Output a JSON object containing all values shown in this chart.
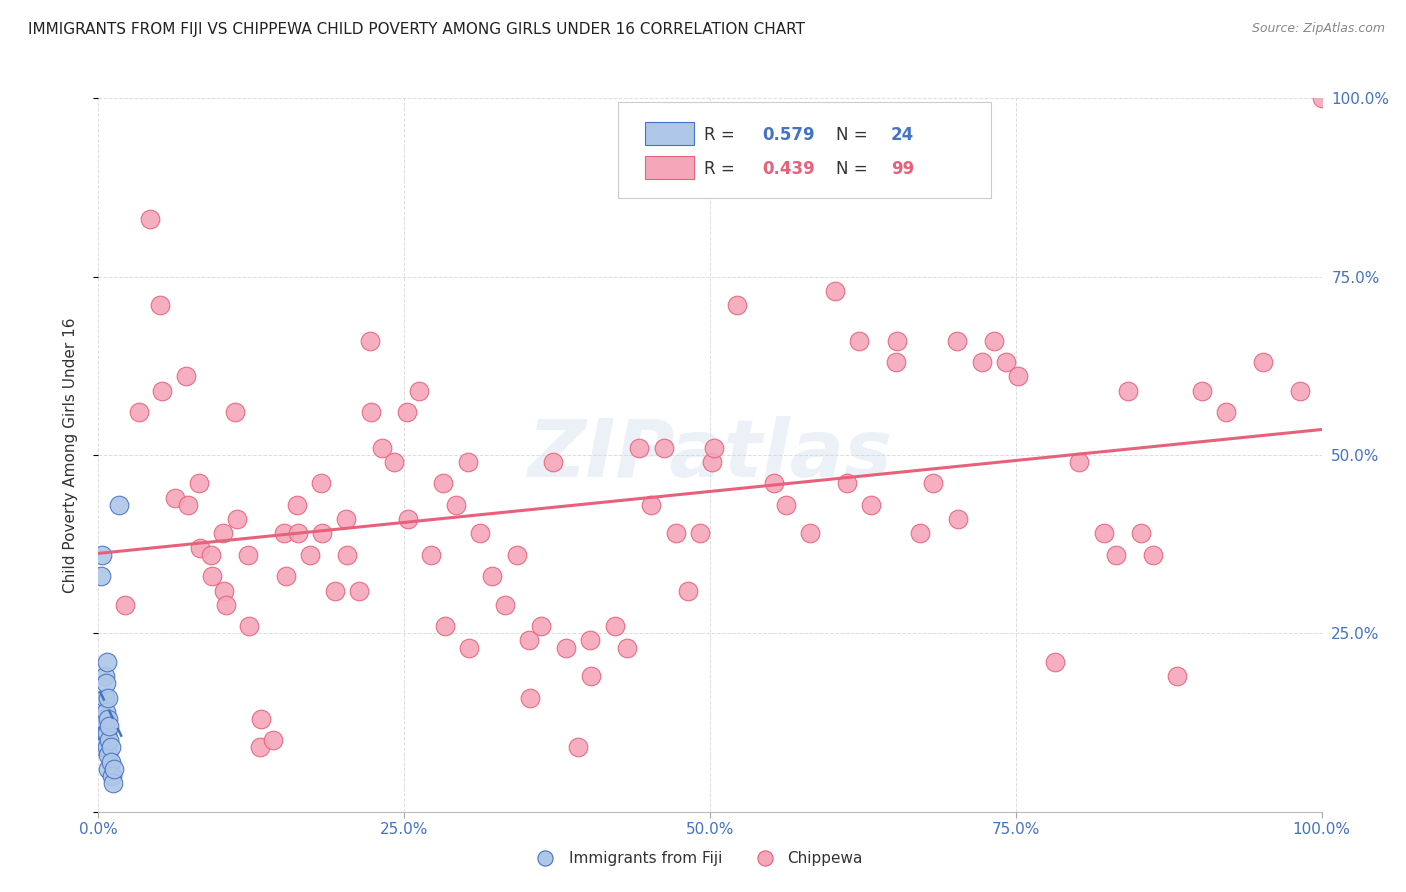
{
  "title": "IMMIGRANTS FROM FIJI VS CHIPPEWA CHILD POVERTY AMONG GIRLS UNDER 16 CORRELATION CHART",
  "source": "Source: ZipAtlas.com",
  "ylabel": "Child Poverty Among Girls Under 16",
  "watermark": "ZIPatlas",
  "fiji_R": 0.579,
  "fiji_N": 24,
  "chippewa_R": 0.439,
  "chippewa_N": 99,
  "fiji_color": "#aec6e8",
  "fiji_line_color": "#4472c4",
  "chippewa_color": "#f4a7b9",
  "chippewa_line_color": "#e8617a",
  "fiji_scatter": [
    [
      0.002,
      0.33
    ],
    [
      0.003,
      0.36
    ],
    [
      0.004,
      0.09
    ],
    [
      0.004,
      0.13
    ],
    [
      0.005,
      0.16
    ],
    [
      0.005,
      0.19
    ],
    [
      0.006,
      0.11
    ],
    [
      0.006,
      0.14
    ],
    [
      0.006,
      0.18
    ],
    [
      0.007,
      0.21
    ],
    [
      0.007,
      0.09
    ],
    [
      0.007,
      0.11
    ],
    [
      0.008,
      0.13
    ],
    [
      0.008,
      0.16
    ],
    [
      0.008,
      0.06
    ],
    [
      0.008,
      0.08
    ],
    [
      0.009,
      0.1
    ],
    [
      0.009,
      0.12
    ],
    [
      0.01,
      0.09
    ],
    [
      0.01,
      0.07
    ],
    [
      0.011,
      0.05
    ],
    [
      0.012,
      0.04
    ],
    [
      0.013,
      0.06
    ],
    [
      0.017,
      0.43
    ]
  ],
  "chippewa_scatter": [
    [
      0.022,
      0.29
    ],
    [
      0.033,
      0.56
    ],
    [
      0.042,
      0.83
    ],
    [
      0.05,
      0.71
    ],
    [
      0.052,
      0.59
    ],
    [
      0.063,
      0.44
    ],
    [
      0.072,
      0.61
    ],
    [
      0.073,
      0.43
    ],
    [
      0.082,
      0.46
    ],
    [
      0.083,
      0.37
    ],
    [
      0.092,
      0.36
    ],
    [
      0.093,
      0.33
    ],
    [
      0.102,
      0.39
    ],
    [
      0.103,
      0.31
    ],
    [
      0.104,
      0.29
    ],
    [
      0.112,
      0.56
    ],
    [
      0.113,
      0.41
    ],
    [
      0.122,
      0.36
    ],
    [
      0.123,
      0.26
    ],
    [
      0.132,
      0.09
    ],
    [
      0.133,
      0.13
    ],
    [
      0.143,
      0.1
    ],
    [
      0.152,
      0.39
    ],
    [
      0.153,
      0.33
    ],
    [
      0.162,
      0.43
    ],
    [
      0.163,
      0.39
    ],
    [
      0.173,
      0.36
    ],
    [
      0.182,
      0.46
    ],
    [
      0.183,
      0.39
    ],
    [
      0.193,
      0.31
    ],
    [
      0.202,
      0.41
    ],
    [
      0.203,
      0.36
    ],
    [
      0.213,
      0.31
    ],
    [
      0.222,
      0.66
    ],
    [
      0.223,
      0.56
    ],
    [
      0.232,
      0.51
    ],
    [
      0.242,
      0.49
    ],
    [
      0.252,
      0.56
    ],
    [
      0.253,
      0.41
    ],
    [
      0.262,
      0.59
    ],
    [
      0.272,
      0.36
    ],
    [
      0.282,
      0.46
    ],
    [
      0.283,
      0.26
    ],
    [
      0.292,
      0.43
    ],
    [
      0.302,
      0.49
    ],
    [
      0.303,
      0.23
    ],
    [
      0.312,
      0.39
    ],
    [
      0.322,
      0.33
    ],
    [
      0.332,
      0.29
    ],
    [
      0.342,
      0.36
    ],
    [
      0.352,
      0.24
    ],
    [
      0.353,
      0.16
    ],
    [
      0.362,
      0.26
    ],
    [
      0.372,
      0.49
    ],
    [
      0.382,
      0.23
    ],
    [
      0.392,
      0.09
    ],
    [
      0.402,
      0.24
    ],
    [
      0.403,
      0.19
    ],
    [
      0.422,
      0.26
    ],
    [
      0.432,
      0.23
    ],
    [
      0.442,
      0.51
    ],
    [
      0.452,
      0.43
    ],
    [
      0.462,
      0.51
    ],
    [
      0.472,
      0.39
    ],
    [
      0.482,
      0.31
    ],
    [
      0.492,
      0.39
    ],
    [
      0.502,
      0.49
    ],
    [
      0.503,
      0.51
    ],
    [
      0.522,
      0.71
    ],
    [
      0.552,
      0.46
    ],
    [
      0.562,
      0.43
    ],
    [
      0.582,
      0.39
    ],
    [
      0.602,
      0.73
    ],
    [
      0.612,
      0.46
    ],
    [
      0.622,
      0.66
    ],
    [
      0.632,
      0.43
    ],
    [
      0.652,
      0.63
    ],
    [
      0.653,
      0.66
    ],
    [
      0.672,
      0.39
    ],
    [
      0.682,
      0.46
    ],
    [
      0.702,
      0.66
    ],
    [
      0.703,
      0.41
    ],
    [
      0.722,
      0.63
    ],
    [
      0.732,
      0.66
    ],
    [
      0.742,
      0.63
    ],
    [
      0.752,
      0.61
    ],
    [
      0.782,
      0.21
    ],
    [
      0.802,
      0.49
    ],
    [
      0.822,
      0.39
    ],
    [
      0.832,
      0.36
    ],
    [
      0.842,
      0.59
    ],
    [
      0.852,
      0.39
    ],
    [
      0.862,
      0.36
    ],
    [
      0.882,
      0.19
    ],
    [
      0.902,
      0.59
    ],
    [
      0.922,
      0.56
    ],
    [
      0.952,
      0.63
    ],
    [
      0.982,
      0.59
    ],
    [
      1.0,
      1.0
    ]
  ],
  "xlim": [
    0.0,
    1.0
  ],
  "ylim": [
    0.0,
    1.0
  ],
  "xticks": [
    0.0,
    0.25,
    0.5,
    0.75,
    1.0
  ],
  "yticks": [
    0.0,
    0.25,
    0.5,
    0.75,
    1.0
  ],
  "xticklabels": [
    "0.0%",
    "25.0%",
    "50.0%",
    "75.0%",
    "100.0%"
  ],
  "yticklabels_right": [
    "",
    "25.0%",
    "50.0%",
    "75.0%",
    "100.0%"
  ],
  "background_color": "#ffffff",
  "grid_color": "#dddddd",
  "title_fontsize": 11,
  "axis_label_fontsize": 11,
  "tick_fontsize": 11
}
